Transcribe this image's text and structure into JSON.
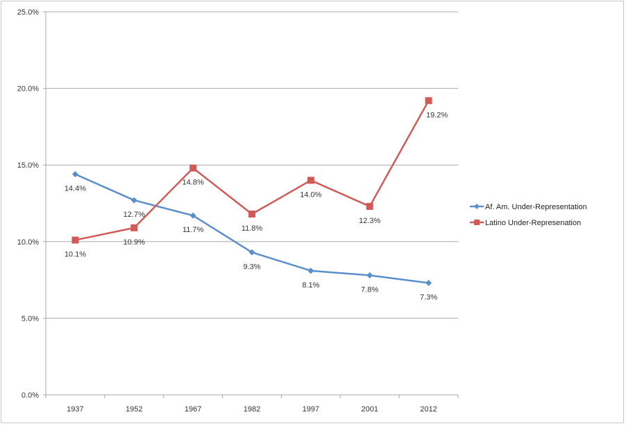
{
  "chart_data": {
    "type": "line",
    "title": "",
    "xlabel": "",
    "ylabel": "",
    "categories": [
      "1937",
      "1952",
      "1967",
      "1982",
      "1997",
      "2001",
      "2012"
    ],
    "ylim": [
      0,
      25
    ],
    "yticks": [
      "0.0%",
      "5.0%",
      "10.0%",
      "15.0%",
      "20.0%",
      "25.0%"
    ],
    "grid": true,
    "legend_position": "right",
    "series": [
      {
        "name": "Af. Am. Under-Representation",
        "color": "#5b8fcc",
        "marker": "diamond",
        "values": [
          14.4,
          12.7,
          11.7,
          9.3,
          8.1,
          7.8,
          7.3
        ],
        "labels": [
          "14.4%",
          "12.7%",
          "11.7%",
          "9.3%",
          "8.1%",
          "7.8%",
          "7.3%"
        ]
      },
      {
        "name": "Latino Under-Represenation",
        "color": "#d05a57",
        "marker": "square",
        "values": [
          10.1,
          10.9,
          14.8,
          11.8,
          14.0,
          12.3,
          19.2
        ],
        "labels": [
          "10.1%",
          "10.9%",
          "14.8%",
          "11.8%",
          "14.0%",
          "12.3%",
          "19.2%"
        ]
      }
    ]
  }
}
